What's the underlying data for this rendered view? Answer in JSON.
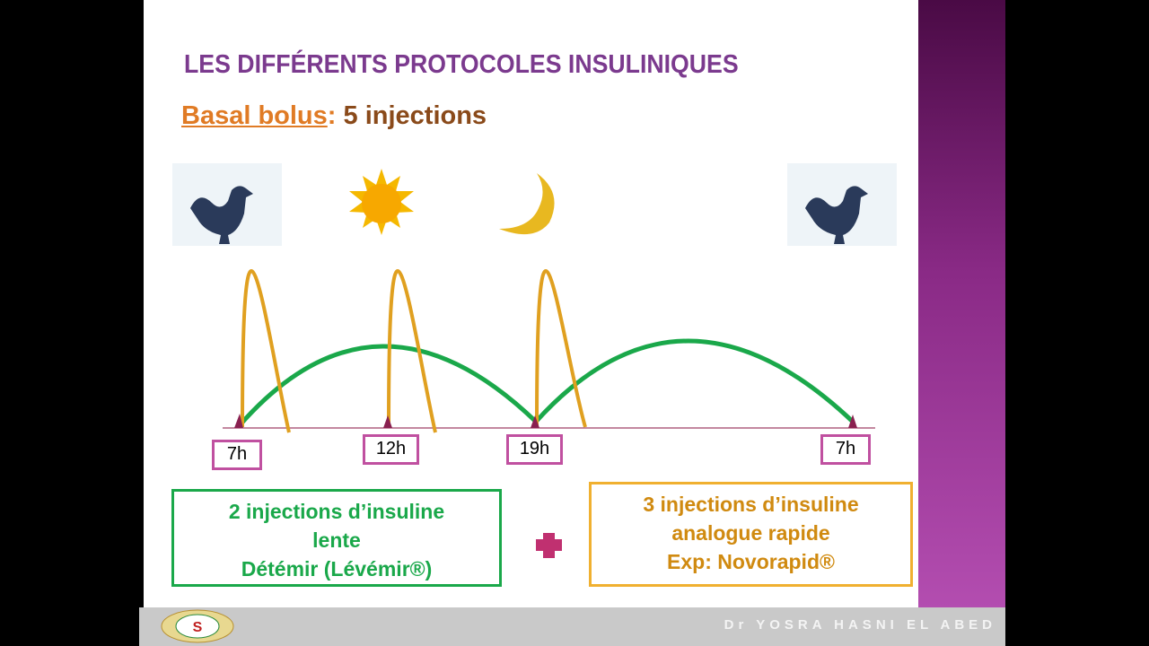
{
  "title": "LES DIFFÉRENTS PROTOCOLES INSULINIQUES",
  "heading": {
    "label": "Basal bolus",
    "separator": ":",
    "count": "5 injections"
  },
  "timeline": {
    "times": [
      "7h",
      "12h",
      "19h",
      "7h"
    ]
  },
  "boxes": {
    "basal": {
      "lines": [
        "2 injections d’insuline",
        "lente",
        "Détémir (Lévémir®)"
      ]
    },
    "bolus": {
      "lines": [
        "3 injections d’insuline",
        "analogue rapide",
        "Exp: Novorapid®"
      ]
    }
  },
  "footer": {
    "author": "Dr YOSRA HASNI EL ABED"
  }
}
